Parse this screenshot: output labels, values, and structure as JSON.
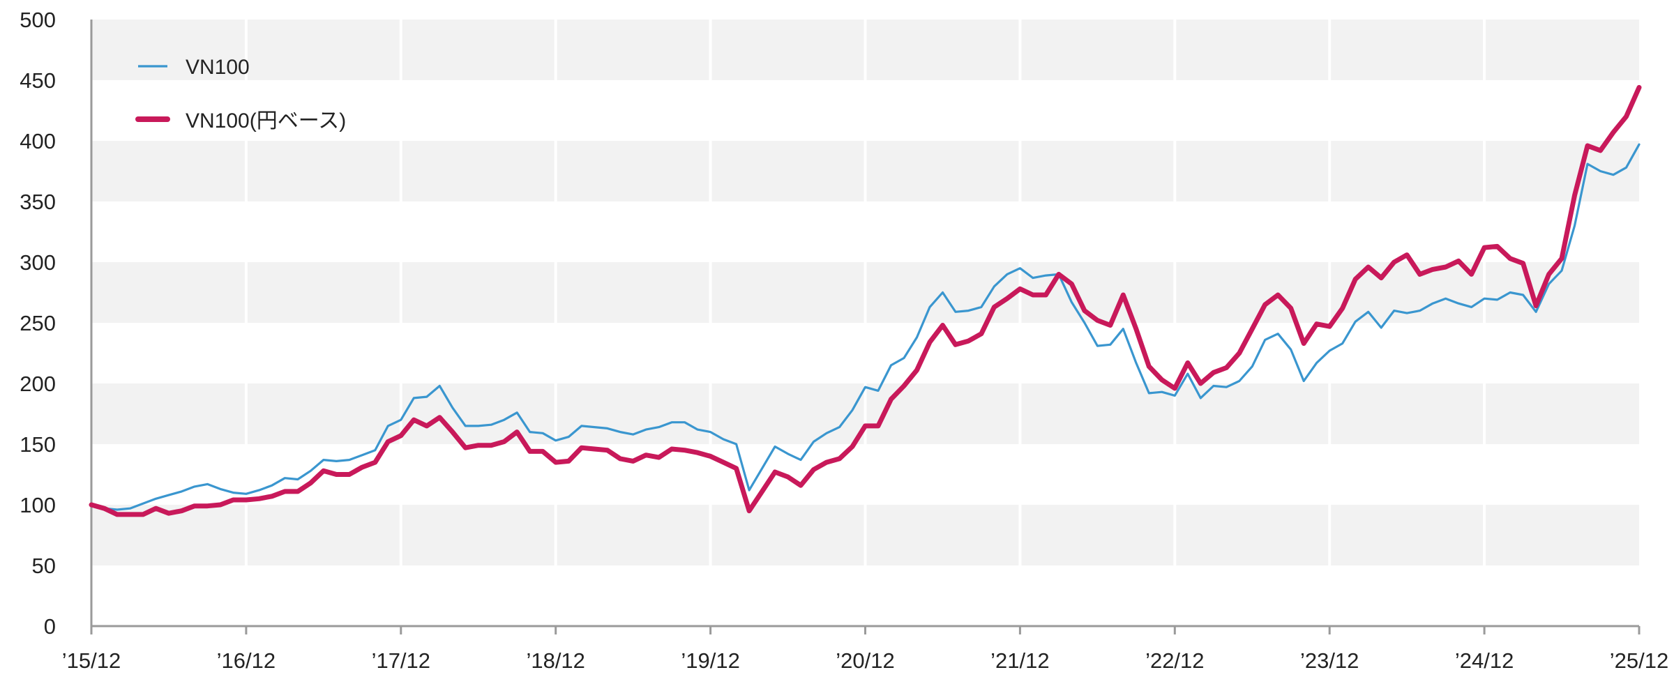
{
  "chart_data": {
    "type": "line",
    "title": "",
    "xlabel": "",
    "ylabel": "",
    "ylim": [
      0,
      500
    ],
    "yticks": [
      0,
      50,
      100,
      150,
      200,
      250,
      300,
      350,
      400,
      450,
      500
    ],
    "xticks": [
      "’15/12",
      "’16/12",
      "’17/12",
      "’18/12",
      "’19/12",
      "’20/12",
      "’21/12",
      "’22/12",
      "’23/12",
      "’24/12",
      "’25/12"
    ],
    "x_start": "2015-12",
    "x_end": "2025-12",
    "frequency": "monthly",
    "grid": true,
    "grid_style": "alternating horizontal bands with vertical gridlines",
    "legend_position": "top-left",
    "series": [
      {
        "name": "VN100",
        "color": "#3a96cf",
        "line_style": "thin",
        "values": [
          100,
          97,
          96,
          97,
          101,
          105,
          108,
          111,
          115,
          117,
          113,
          110,
          109,
          112,
          116,
          122,
          121,
          128,
          137,
          136,
          137,
          141,
          145,
          165,
          170,
          188,
          189,
          198,
          180,
          165,
          165,
          166,
          170,
          176,
          160,
          159,
          153,
          156,
          165,
          164,
          163,
          160,
          158,
          162,
          164,
          168,
          168,
          162,
          160,
          154,
          150,
          112,
          130,
          148,
          142,
          137,
          152,
          159,
          164,
          178,
          197,
          194,
          215,
          221,
          238,
          263,
          275,
          259,
          260,
          263,
          280,
          290,
          295,
          287,
          289,
          290,
          267,
          250,
          231,
          232,
          245,
          217,
          192,
          193,
          190,
          208,
          188,
          198,
          197,
          202,
          214,
          236,
          241,
          228,
          202,
          217,
          227,
          233,
          251,
          259,
          246,
          260,
          258,
          260,
          266,
          270,
          266,
          263,
          270,
          269,
          275,
          273,
          259,
          282,
          293,
          330,
          381,
          375,
          372,
          378,
          397
        ]
      },
      {
        "name": "VN100(円ベース)",
        "color": "#c8195a",
        "line_style": "thick",
        "values": [
          100,
          97,
          92,
          92,
          92,
          97,
          93,
          95,
          99,
          99,
          100,
          104,
          104,
          105,
          107,
          111,
          111,
          118,
          128,
          125,
          125,
          131,
          135,
          152,
          157,
          170,
          165,
          172,
          160,
          147,
          149,
          149,
          152,
          160,
          144,
          144,
          135,
          136,
          147,
          146,
          145,
          138,
          136,
          141,
          139,
          146,
          145,
          143,
          140,
          135,
          130,
          95,
          111,
          127,
          123,
          116,
          129,
          135,
          138,
          148,
          165,
          165,
          187,
          198,
          211,
          234,
          248,
          232,
          235,
          241,
          263,
          270,
          278,
          273,
          273,
          290,
          282,
          260,
          252,
          248,
          273,
          245,
          214,
          203,
          196,
          217,
          200,
          209,
          213,
          225,
          245,
          265,
          273,
          262,
          233,
          249,
          247,
          262,
          286,
          296,
          287,
          300,
          306,
          290,
          294,
          296,
          301,
          290,
          312,
          313,
          303,
          299,
          264,
          290,
          303,
          355,
          396,
          392,
          407,
          420,
          444
        ]
      }
    ]
  }
}
